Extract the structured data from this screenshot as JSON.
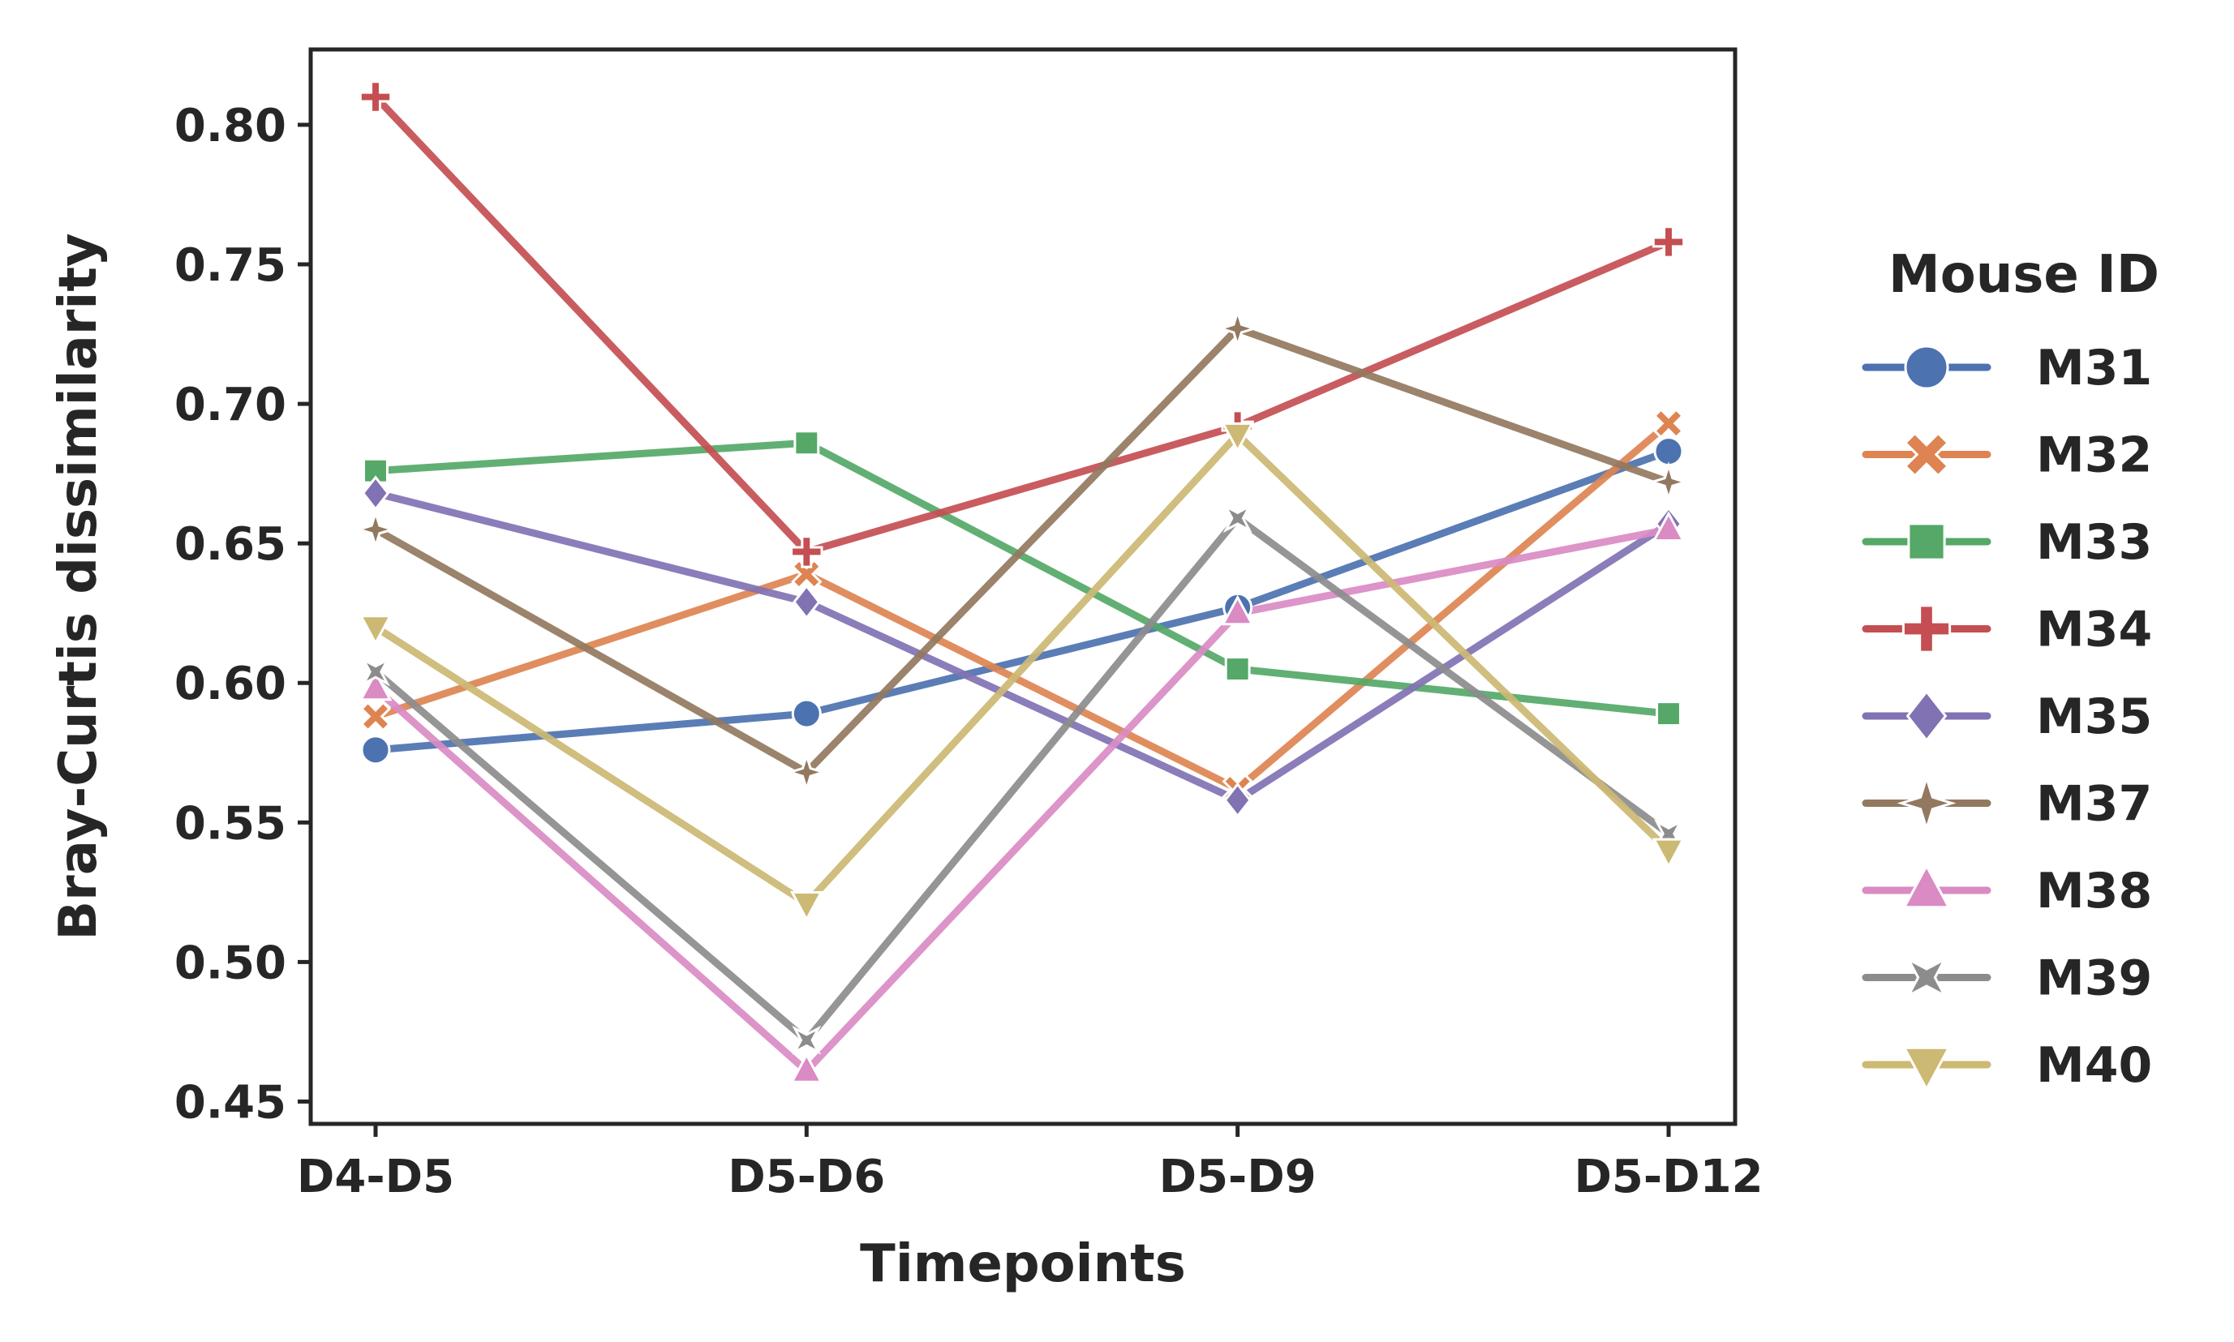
{
  "chart_data": {
    "type": "line",
    "title": "",
    "xlabel": "Timepoints",
    "ylabel": "Bray-Curtis dissimilarity",
    "categories": [
      "D4-D5",
      "D5-D6",
      "D5-D9",
      "D5-D12"
    ],
    "ylim": [
      0.442,
      0.827
    ],
    "yticks": [
      0.45,
      0.5,
      0.55,
      0.6,
      0.65,
      0.7,
      0.75,
      0.8
    ],
    "ytick_labels": [
      "0.45",
      "0.50",
      "0.55",
      "0.60",
      "0.65",
      "0.70",
      "0.75",
      "0.80"
    ],
    "grid": false,
    "legend": {
      "title": "Mouse ID",
      "placement": "outside-right"
    },
    "series": [
      {
        "name": "M31",
        "color": "#4c72b0",
        "marker": "circle",
        "values": [
          0.576,
          0.589,
          0.627,
          0.683
        ]
      },
      {
        "name": "M32",
        "color": "#dd8452",
        "marker": "x",
        "values": [
          0.588,
          0.639,
          0.562,
          0.693
        ]
      },
      {
        "name": "M33",
        "color": "#55a868",
        "marker": "square",
        "values": [
          0.676,
          0.686,
          0.605,
          0.589
        ]
      },
      {
        "name": "M34",
        "color": "#c44e52",
        "marker": "plus",
        "values": [
          0.81,
          0.647,
          0.692,
          0.758
        ]
      },
      {
        "name": "M35",
        "color": "#8172b3",
        "marker": "diamond",
        "values": [
          0.668,
          0.629,
          0.558,
          0.657
        ]
      },
      {
        "name": "M37",
        "color": "#937860",
        "marker": "star4",
        "values": [
          0.655,
          0.568,
          0.727,
          0.672
        ]
      },
      {
        "name": "M38",
        "color": "#da8bc3",
        "marker": "triangle-up",
        "values": [
          0.598,
          0.461,
          0.625,
          0.655
        ]
      },
      {
        "name": "M39",
        "color": "#8c8c8c",
        "marker": "star4x",
        "values": [
          0.604,
          0.472,
          0.659,
          0.546
        ]
      },
      {
        "name": "M40",
        "color": "#ccb974",
        "marker": "triangle-down",
        "values": [
          0.62,
          0.521,
          0.689,
          0.54
        ]
      }
    ]
  }
}
